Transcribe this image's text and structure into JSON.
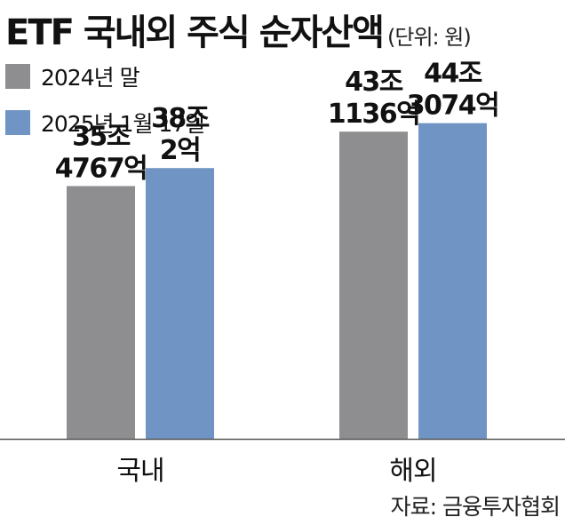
{
  "title": "ETF 국내외 주식 순자산액",
  "unit": "(단위: 원)",
  "source": "자료: 금융투자협회",
  "colors": {
    "series1": "#8e8e90",
    "series2": "#7094c3",
    "axis": "#555555"
  },
  "chart_data": {
    "type": "bar",
    "categories": [
      "국내",
      "해외"
    ],
    "series": [
      {
        "name": "2024년 말",
        "values": [
          354767,
          431136
        ],
        "labels": [
          "35조\n4767억",
          "43조\n1136억"
        ]
      },
      {
        "name": "2025년 1월 17일",
        "values": [
          380002,
          443074
        ],
        "labels": [
          "38조\n2억",
          "44조\n3074억"
        ]
      }
    ],
    "value_unit": "억원",
    "ylim": [
      0,
      480000
    ],
    "grid": false,
    "legend": "top-left"
  }
}
